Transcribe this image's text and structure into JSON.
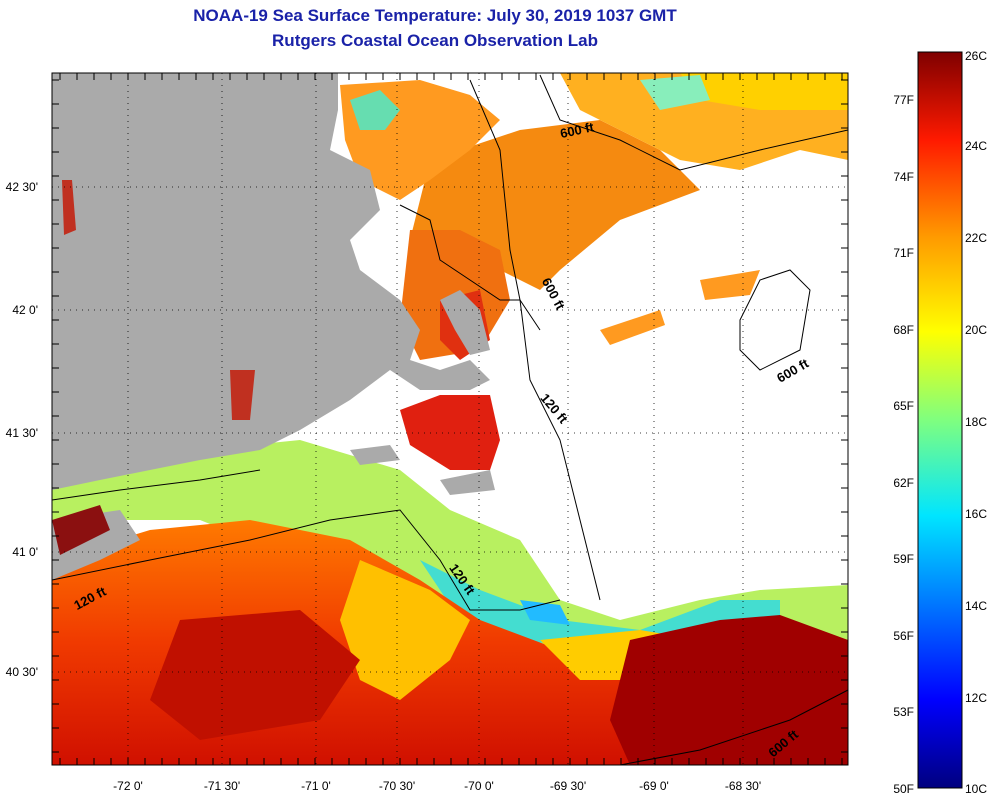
{
  "title_line1": "NOAA-19 Sea Surface Temperature:  July 30, 2019 1037 GMT",
  "title_line2": "Rutgers Coastal Ocean Observation Lab",
  "lat_labels": [
    "42 30'",
    "42 0'",
    "41 30'",
    "41 0'",
    "40 30'"
  ],
  "lon_labels": [
    "-72 0'",
    "-71 30'",
    "-71 0'",
    "-70 30'",
    "-70 0'",
    "-69 30'",
    "-69 0'",
    "-68 30'"
  ],
  "contour_labels": [
    "600 ft",
    "600 ft",
    "600 ft",
    "120 ft",
    "120 ft",
    "120 ft",
    "600 ft"
  ],
  "colorbar": {
    "celsius": [
      "26C",
      "24C",
      "22C",
      "20C",
      "18C",
      "16C",
      "14C",
      "12C",
      "10C"
    ],
    "fahrenheit": [
      "77F",
      "74F",
      "71F",
      "68F",
      "65F",
      "62F",
      "59F",
      "56F",
      "53F",
      "50F"
    ],
    "range_c": [
      10,
      26
    ]
  },
  "colors": {
    "land": "#aaaaaa",
    "cloud": "#ffffff",
    "title": "#1a22a8"
  }
}
